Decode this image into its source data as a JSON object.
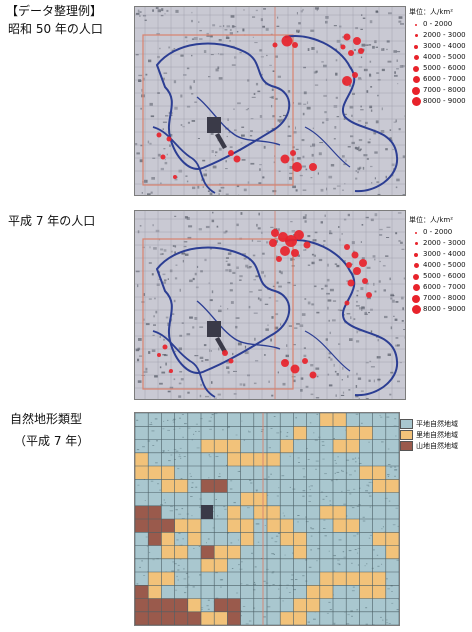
{
  "header": {
    "title": "【データ整理例】"
  },
  "panel1": {
    "title": "昭和 50 年の人口",
    "legend": {
      "unit": "単位：人/km²",
      "entries": [
        {
          "label": "0 - 2000",
          "size": 2
        },
        {
          "label": "2000 - 3000",
          "size": 3
        },
        {
          "label": "3000 - 4000",
          "size": 4
        },
        {
          "label": "4000 - 5000",
          "size": 5
        },
        {
          "label": "5000 - 6000",
          "size": 6
        },
        {
          "label": "6000 - 7000",
          "size": 7
        },
        {
          "label": "7000 - 8000",
          "size": 8
        },
        {
          "label": "8000 - 9000",
          "size": 9
        }
      ]
    }
  },
  "panel2": {
    "title": "平成 7 年の人口",
    "legend": {
      "unit": "単位：人/km²",
      "entries": [
        {
          "label": "0 - 2000",
          "size": 2
        },
        {
          "label": "2000 - 3000",
          "size": 3
        },
        {
          "label": "3000 - 4000",
          "size": 4
        },
        {
          "label": "4000 - 5000",
          "size": 5
        },
        {
          "label": "5000 - 6000",
          "size": 6
        },
        {
          "label": "6000 - 7000",
          "size": 7
        },
        {
          "label": "7000 - 8000",
          "size": 8
        },
        {
          "label": "8000 - 9000",
          "size": 9
        }
      ]
    }
  },
  "panel3": {
    "title": "自然地形類型",
    "subtitle": "（平成 7 年）",
    "legend": [
      {
        "label": "平地自然地域",
        "color": "#a9c7cf"
      },
      {
        "label": "里地自然地域",
        "color": "#f2c27a"
      },
      {
        "label": "山地自然地域",
        "color": "#9a5a4c"
      }
    ]
  },
  "colors": {
    "map_base": "#c9c9d3",
    "river": "#2c3e93",
    "dot": "#e8232b",
    "boundary": "#d9826e"
  }
}
